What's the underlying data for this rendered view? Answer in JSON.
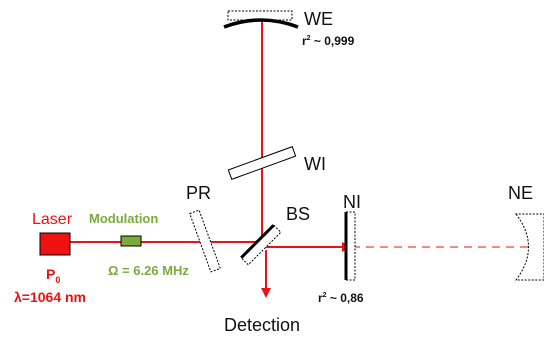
{
  "labels": {
    "we": "WE",
    "wi": "WI",
    "pr": "PR",
    "bs": "BS",
    "ni": "NI",
    "ne": "NE",
    "laser": "Laser",
    "modulation": "Modulation",
    "detection": "Detection",
    "p_main": "P",
    "p_sub": "0",
    "wavelength": "λ=1064 nm",
    "frequency": "Ω = 6.26 MHz",
    "r2_we_base": "r",
    "r2_we_sup": "2",
    "r2_we_val": " ~ 0,999",
    "r2_ni_base": "r",
    "r2_ni_sup": "2",
    "r2_ni_val": " ~ 0,86"
  },
  "colors": {
    "beam": "#ee1111",
    "laser": "#ee1111",
    "modulation": "#7aab3c",
    "mirror": "#000000",
    "ink": "#111111"
  }
}
